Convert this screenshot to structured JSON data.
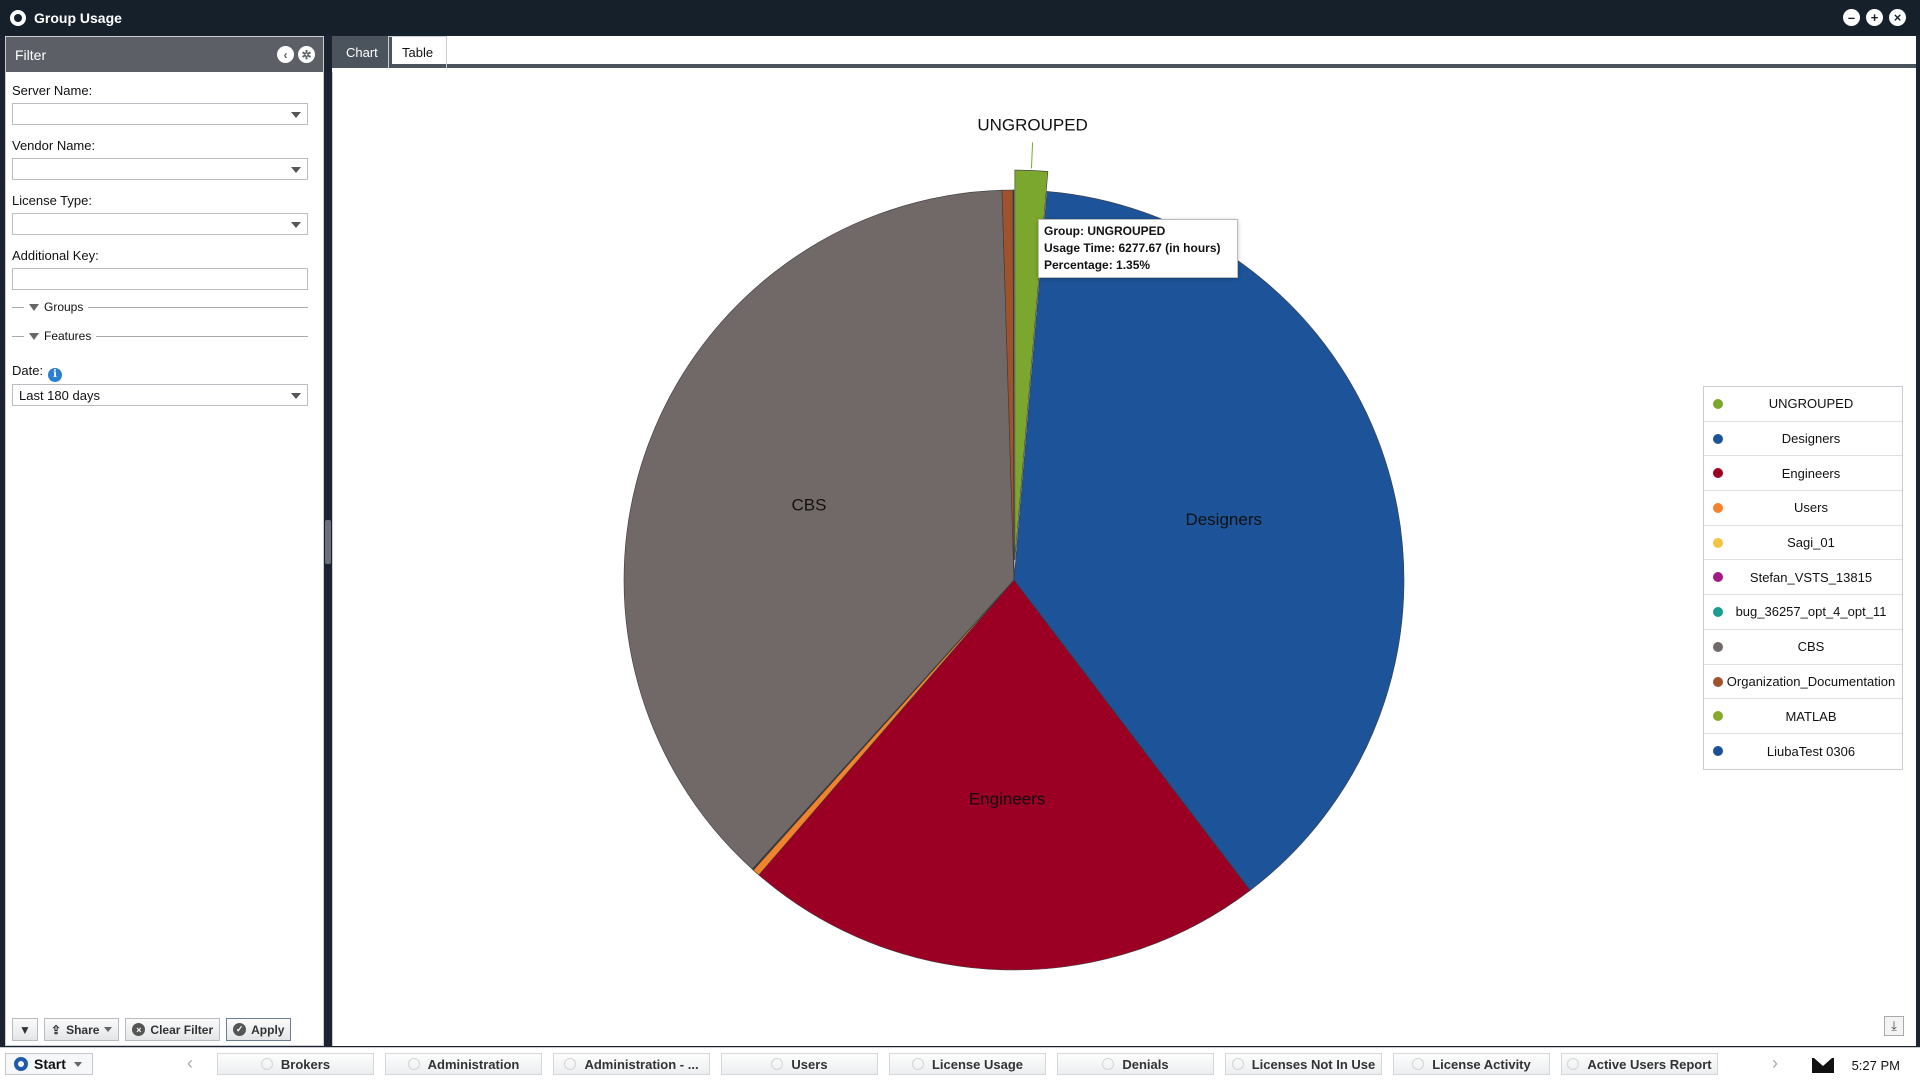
{
  "window": {
    "title": "Group Usage"
  },
  "filter": {
    "title": "Filter",
    "server_label": "Server Name:",
    "server_value": "",
    "vendor_label": "Vendor Name:",
    "vendor_value": "",
    "license_label": "License Type:",
    "license_value": "",
    "additional_label": "Additional Key:",
    "additional_value": "",
    "groups_label": "Groups",
    "features_label": "Features",
    "date_label": "Date:",
    "date_value": "Last 180 days",
    "share_label": "Share",
    "clear_label": "Clear Filter",
    "apply_label": "Apply"
  },
  "tabs": [
    {
      "label": "Chart",
      "active": true
    },
    {
      "label": "Table",
      "active": false
    }
  ],
  "tooltip": {
    "line1": "Group: UNGROUPED",
    "line2": "Usage Time: 6277.67 (in hours)",
    "line3": "Percentage: 1.35%"
  },
  "chart_data": {
    "type": "pie",
    "categories": [
      "UNGROUPED",
      "Designers",
      "Engineers",
      "Users",
      "Sagi_01",
      "Stefan_VSTS_13815",
      "bug_36257_opt_4_opt_11",
      "CBS",
      "Organization_Documentation",
      "MATLAB",
      "LiubaTest 0306"
    ],
    "values": [
      1.35,
      38.3,
      21.7,
      0.3,
      0.02,
      0.02,
      0.02,
      37.8,
      0.45,
      0.02,
      0.02
    ],
    "colors": [
      "#7ca72e",
      "#1d5499",
      "#9b0024",
      "#f2822b",
      "#f5c342",
      "#a01c84",
      "#1c9c8c",
      "#716868",
      "#a0522d",
      "#86ab2c",
      "#1d4f97"
    ],
    "slice_labels": [
      "UNGROUPED",
      "Designers",
      "Engineers",
      "",
      "",
      "",
      "",
      "CBS",
      "",
      "",
      ""
    ],
    "exploded": "UNGROUPED",
    "legend_position": "right"
  },
  "taskbar": {
    "start_label": "Start",
    "tasks": [
      "Brokers",
      "Administration",
      "Administration - ...",
      "Users",
      "License Usage",
      "Denials",
      "Licenses Not In Use",
      "License Activity",
      "Active Users Report"
    ],
    "time": "5:27 PM"
  }
}
